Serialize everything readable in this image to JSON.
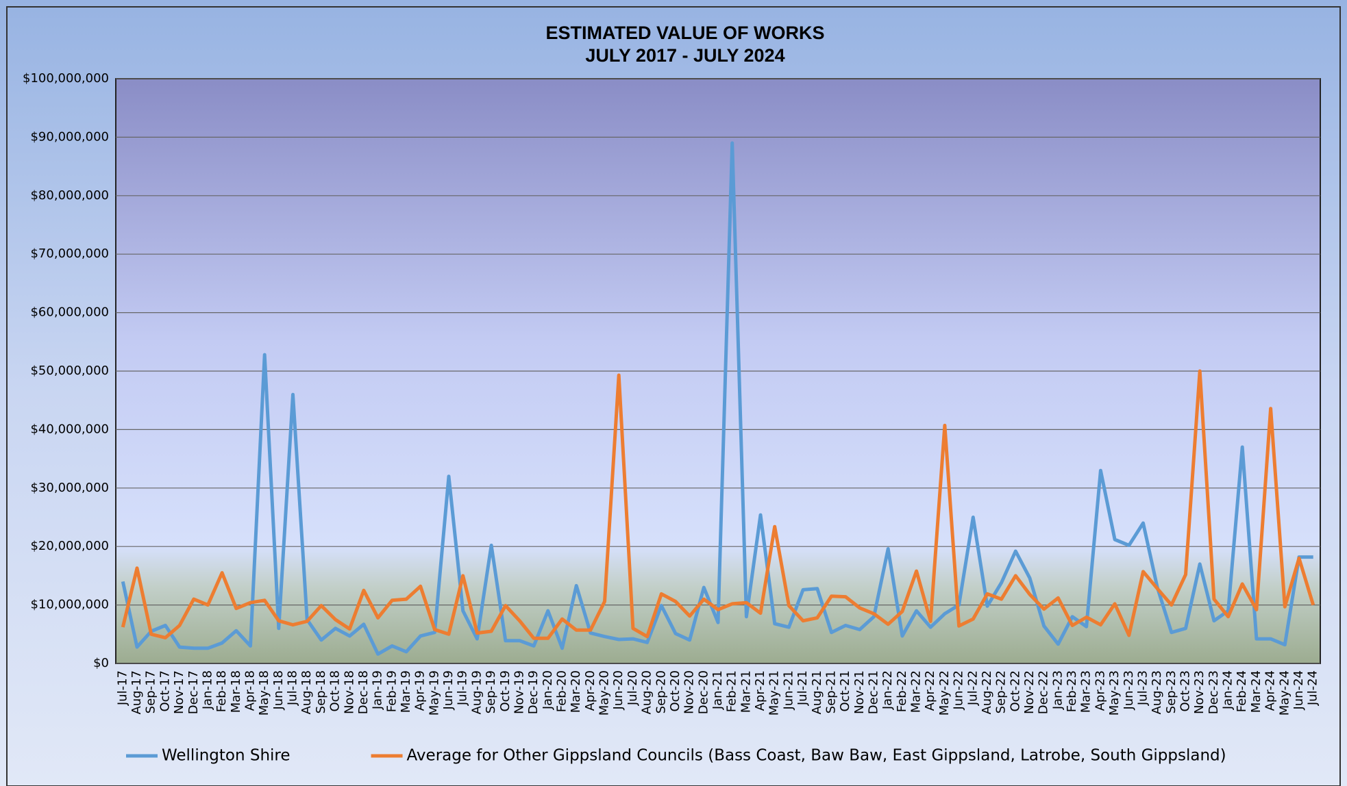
{
  "chart_data": {
    "type": "line",
    "title": "ESTIMATED VALUE OF WORKS",
    "subtitle": "JULY 2017 - JULY 2024",
    "categories": [
      "Jul-17",
      "Aug-17",
      "Sep-17",
      "Oct-17",
      "Nov-17",
      "Dec-17",
      "Jan-18",
      "Feb-18",
      "Mar-18",
      "Apr-18",
      "May-18",
      "Jun-18",
      "Jul-18",
      "Aug-18",
      "Sep-18",
      "Oct-18",
      "Nov-18",
      "Dec-18",
      "Jan-19",
      "Feb-19",
      "Mar-19",
      "Apr-19",
      "May-19",
      "Jun-19",
      "Jul-19",
      "Aug-19",
      "Sep-19",
      "Oct-19",
      "Nov-19",
      "Dec-19",
      "Jan-20",
      "Feb-20",
      "Mar-20",
      "Apr-20",
      "May-20",
      "Jun-20",
      "Jul-20",
      "Aug-20",
      "Sep-20",
      "Oct-20",
      "Nov-20",
      "Dec-20",
      "Jan-21",
      "Feb-21",
      "Mar-21",
      "Apr-21",
      "May-21",
      "Jun-21",
      "Jul-21",
      "Aug-21",
      "Sep-21",
      "Oct-21",
      "Nov-21",
      "Dec-21",
      "Jan-22",
      "Feb-22",
      "Mar-22",
      "Apr-22",
      "May-22",
      "Jun-22",
      "Jul-22",
      "Aug-22",
      "Sep-22",
      "Oct-22",
      "Nov-22",
      "Dec-22",
      "Jan-23",
      "Feb-23",
      "Mar-23",
      "Apr-23",
      "May-23",
      "Jun-23",
      "Jul-23",
      "Aug-23",
      "Sep-23",
      "Oct-23",
      "Nov-23",
      "Dec-23",
      "Jan-24",
      "Feb-24",
      "Mar-24",
      "Apr-24",
      "May-24",
      "Jun-24",
      "Jul-24"
    ],
    "series": [
      {
        "name": "Wellington Shire",
        "color": "#5b9bd5",
        "values": [
          14000000,
          2800000,
          5500000,
          6500000,
          2800000,
          2600000,
          2600000,
          3500000,
          5600000,
          3000000,
          52800000,
          6000000,
          46000000,
          7500000,
          4000000,
          6000000,
          4700000,
          6700000,
          1600000,
          3000000,
          2000000,
          4700000,
          5300000,
          32000000,
          9000000,
          4200000,
          20200000,
          3900000,
          3900000,
          3000000,
          9000000,
          2600000,
          13300000,
          5200000,
          4600000,
          4100000,
          4200000,
          3600000,
          9900000,
          5100000,
          4000000,
          13000000,
          7000000,
          89000000,
          8000000,
          25400000,
          6800000,
          6200000,
          12600000,
          12800000,
          5300000,
          6500000,
          5800000,
          8000000,
          19600000,
          4700000,
          9000000,
          6200000,
          8500000,
          10000000,
          25000000,
          9800000,
          13800000,
          19200000,
          14600000,
          6400000,
          3300000,
          8000000,
          6300000,
          33000000,
          21200000,
          20200000,
          24000000,
          13000000,
          5300000,
          6000000,
          17000000,
          7300000,
          9000000,
          37000000,
          4200000,
          4200000,
          3200000,
          18200000,
          18200000
        ]
      },
      {
        "name": "Average for Other Gippsland Councils (Bass Coast, Baw Baw, East Gippsland, Latrobe, South Gippsland)",
        "color": "#ed7d31",
        "values": [
          6200000,
          16300000,
          5000000,
          4400000,
          6500000,
          11000000,
          10000000,
          15500000,
          9400000,
          10400000,
          10800000,
          7300000,
          6600000,
          7200000,
          9900000,
          7500000,
          5900000,
          12500000,
          7800000,
          10800000,
          11000000,
          13200000,
          5800000,
          5000000,
          15000000,
          5200000,
          5500000,
          9900000,
          7300000,
          4300000,
          4300000,
          7600000,
          5700000,
          5700000,
          10600000,
          49300000,
          6000000,
          4600000,
          11900000,
          10600000,
          8100000,
          11000000,
          9200000,
          10200000,
          10400000,
          8600000,
          23400000,
          9900000,
          7300000,
          7800000,
          11500000,
          11400000,
          9500000,
          8500000,
          6700000,
          8900000,
          15800000,
          7200000,
          40700000,
          6400000,
          7600000,
          11900000,
          11000000,
          15000000,
          11800000,
          9300000,
          11200000,
          6500000,
          7900000,
          6600000,
          10200000,
          4800000,
          15700000,
          12800000,
          10000000,
          15200000,
          50000000,
          11000000,
          8000000,
          13600000,
          9200000,
          43600000,
          9700000,
          18000000,
          10000000
        ]
      }
    ],
    "ylim": [
      0,
      100000000
    ],
    "yticks": [
      {
        "value": 0,
        "label": "$0"
      },
      {
        "value": 10000000,
        "label": "$10,000,000"
      },
      {
        "value": 20000000,
        "label": "$20,000,000"
      },
      {
        "value": 30000000,
        "label": "$30,000,000"
      },
      {
        "value": 40000000,
        "label": "$40,000,000"
      },
      {
        "value": 50000000,
        "label": "$50,000,000"
      },
      {
        "value": 60000000,
        "label": "$60,000,000"
      },
      {
        "value": 70000000,
        "label": "$70,000,000"
      },
      {
        "value": 80000000,
        "label": "$80,000,000"
      },
      {
        "value": 90000000,
        "label": "$90,000,000"
      },
      {
        "value": 100000000,
        "label": "$100,000,000"
      }
    ],
    "grid": true,
    "legend": "bottom"
  }
}
